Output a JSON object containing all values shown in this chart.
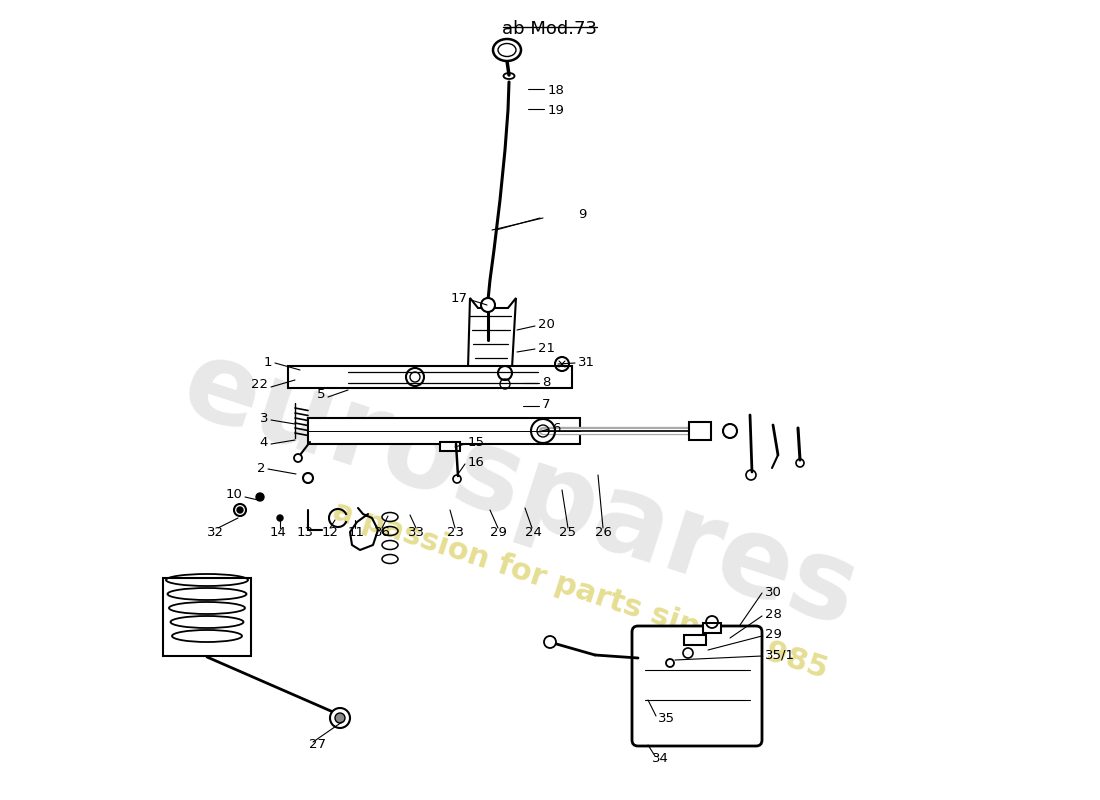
{
  "title": "ab Mod.73",
  "background_color": "#ffffff",
  "watermark_text1": "eurospares",
  "watermark_text2": "a passion for parts since 1985",
  "label_fontsize": 9.5,
  "title_fontsize": 13,
  "watermark_color1": "#cccccc",
  "watermark_color2": "#d4c84a",
  "line_color": "#000000",
  "labels": [
    [
      "18",
      548,
      90,
      "left"
    ],
    [
      "19",
      548,
      110,
      "left"
    ],
    [
      "9",
      578,
      215,
      "left"
    ],
    [
      "17",
      468,
      298,
      "right"
    ],
    [
      "20",
      538,
      325,
      "left"
    ],
    [
      "21",
      538,
      348,
      "left"
    ],
    [
      "31",
      578,
      362,
      "left"
    ],
    [
      "1",
      272,
      362,
      "right"
    ],
    [
      "8",
      542,
      382,
      "left"
    ],
    [
      "22",
      268,
      385,
      "right"
    ],
    [
      "5",
      325,
      395,
      "right"
    ],
    [
      "7",
      542,
      405,
      "left"
    ],
    [
      "3",
      268,
      418,
      "right"
    ],
    [
      "6",
      552,
      428,
      "left"
    ],
    [
      "4",
      268,
      442,
      "right"
    ],
    [
      "15",
      468,
      443,
      "left"
    ],
    [
      "16",
      468,
      463,
      "left"
    ],
    [
      "2",
      265,
      468,
      "right"
    ],
    [
      "10",
      242,
      495,
      "right"
    ],
    [
      "32",
      215,
      532,
      "center"
    ],
    [
      "14",
      278,
      532,
      "center"
    ],
    [
      "13",
      305,
      532,
      "center"
    ],
    [
      "12",
      330,
      532,
      "center"
    ],
    [
      "11",
      356,
      532,
      "center"
    ],
    [
      "36",
      382,
      532,
      "center"
    ],
    [
      "33",
      416,
      532,
      "center"
    ],
    [
      "23",
      455,
      532,
      "center"
    ],
    [
      "29",
      498,
      532,
      "center"
    ],
    [
      "24",
      533,
      532,
      "center"
    ],
    [
      "25",
      568,
      532,
      "center"
    ],
    [
      "26",
      603,
      532,
      "center"
    ],
    [
      "27",
      318,
      745,
      "center"
    ],
    [
      "30",
      765,
      592,
      "left"
    ],
    [
      "28",
      765,
      615,
      "left"
    ],
    [
      "29",
      765,
      635,
      "left"
    ],
    [
      "35/1",
      765,
      655,
      "left"
    ],
    [
      "35",
      658,
      718,
      "left"
    ],
    [
      "34",
      652,
      758,
      "left"
    ]
  ]
}
